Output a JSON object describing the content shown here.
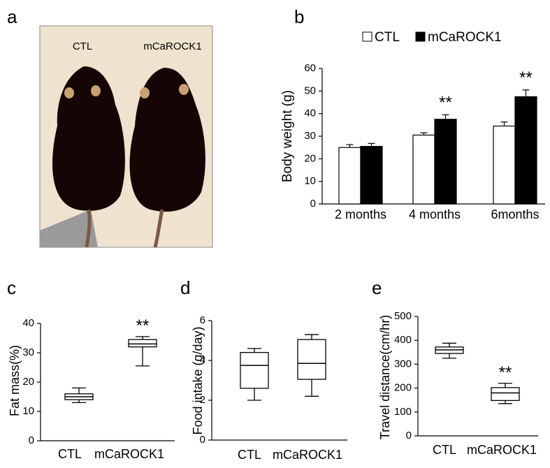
{
  "photo": {
    "panel": "a",
    "labels": [
      "CTL",
      "mCaROCK1"
    ]
  },
  "chart_data": [
    {
      "type": "bar",
      "panel": "b",
      "ylabel": "Body weight (g)",
      "categories": [
        "2 months",
        "4 months",
        "6months"
      ],
      "series": [
        {
          "name": "CTL",
          "color": "#ffffff",
          "values": [
            25,
            30.5,
            34.5
          ],
          "errors": [
            1.3,
            1.0,
            1.8
          ]
        },
        {
          "name": "mCaROCK1",
          "color": "#000000",
          "values": [
            25.5,
            37.5,
            47.5
          ],
          "errors": [
            1.3,
            2.0,
            3.0
          ]
        }
      ],
      "annotations": [
        null,
        "**",
        "**"
      ],
      "ylim": [
        0,
        60
      ],
      "yticks": [
        0,
        10,
        20,
        30,
        40,
        50,
        60
      ]
    },
    {
      "type": "box",
      "panel": "c",
      "ylabel": "Fat mass(%)",
      "categories": [
        "CTL",
        "mCaROCK1"
      ],
      "boxes": [
        {
          "min": 13,
          "q1": 14,
          "median": 15,
          "q3": 16,
          "max": 18
        },
        {
          "min": 25.5,
          "q1": 32,
          "median": 33,
          "q3": 34.5,
          "max": 35.5
        }
      ],
      "annotations": [
        null,
        "**"
      ],
      "ylim": [
        0,
        40
      ],
      "yticks": [
        0,
        10,
        20,
        30,
        40
      ]
    },
    {
      "type": "box",
      "panel": "d",
      "ylabel": "Food intake (g/day)",
      "categories": [
        "CTL",
        "mCaROCK1"
      ],
      "boxes": [
        {
          "min": 2.0,
          "q1": 2.6,
          "median": 3.75,
          "q3": 4.4,
          "max": 4.6
        },
        {
          "min": 2.2,
          "q1": 3.05,
          "median": 3.85,
          "q3": 5.05,
          "max": 5.3
        }
      ],
      "ylim": [
        0,
        6
      ],
      "yticks": [
        0,
        2,
        4,
        6
      ]
    },
    {
      "type": "box",
      "panel": "e",
      "ylabel": "Travel distance(cm/hr)",
      "categories": [
        "CTL",
        "mCaROCK1"
      ],
      "boxes": [
        {
          "min": 325,
          "q1": 345,
          "median": 360,
          "q3": 372,
          "max": 388
        },
        {
          "min": 135,
          "q1": 148,
          "median": 180,
          "q3": 202,
          "max": 220
        }
      ],
      "annotations": [
        null,
        "**"
      ],
      "ylim": [
        0,
        500
      ],
      "yticks": [
        0,
        100,
        200,
        300,
        400,
        500
      ]
    }
  ]
}
